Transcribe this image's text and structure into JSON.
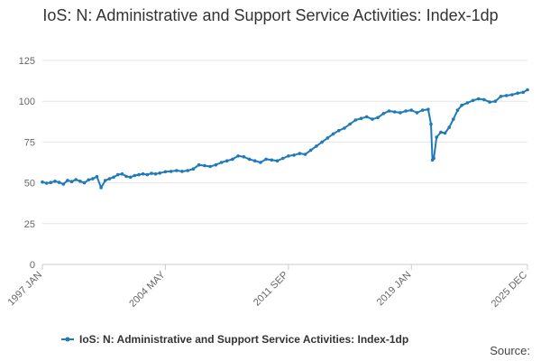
{
  "chart_data": {
    "type": "line",
    "title": "IoS: N: Administrative and Support Service Activities: Index-1dp",
    "xlabel": "",
    "ylabel": "",
    "ylim": [
      0,
      125
    ],
    "yticks": [
      0,
      25,
      50,
      75,
      100,
      125
    ],
    "xlim": [
      "1997-01",
      "2025-12"
    ],
    "xticks": [
      "1997 JAN",
      "2004 MAY",
      "2011 SEP",
      "2019 JAN",
      "2025 DEC"
    ],
    "grid": true,
    "legend": "bottom-center",
    "color": "#1f7ab8",
    "series": [
      {
        "name": "IoS: N: Administrative and Support Service Activities: Index-1dp",
        "points": [
          [
            "1997-01",
            50.5
          ],
          [
            "1997-04",
            49.8
          ],
          [
            "1997-07",
            50.2
          ],
          [
            "1997-10",
            51.0
          ],
          [
            "1998-01",
            50.3
          ],
          [
            "1998-04",
            49.2
          ],
          [
            "1998-07",
            51.5
          ],
          [
            "1998-10",
            50.8
          ],
          [
            "1999-01",
            52.0
          ],
          [
            "1999-04",
            51.0
          ],
          [
            "1999-07",
            50.0
          ],
          [
            "1999-10",
            51.8
          ],
          [
            "2000-01",
            52.5
          ],
          [
            "2000-04",
            53.8
          ],
          [
            "2000-07",
            47.0
          ],
          [
            "2000-10",
            51.5
          ],
          [
            "2001-01",
            52.5
          ],
          [
            "2001-04",
            53.5
          ],
          [
            "2001-07",
            55.0
          ],
          [
            "2001-10",
            55.5
          ],
          [
            "2002-01",
            54.0
          ],
          [
            "2002-04",
            53.5
          ],
          [
            "2002-07",
            54.5
          ],
          [
            "2002-10",
            55.0
          ],
          [
            "2003-01",
            55.5
          ],
          [
            "2003-04",
            55.0
          ],
          [
            "2003-07",
            55.8
          ],
          [
            "2003-10",
            55.5
          ],
          [
            "2004-01",
            56.0
          ],
          [
            "2004-05",
            56.8
          ],
          [
            "2004-09",
            57.0
          ],
          [
            "2005-01",
            57.5
          ],
          [
            "2005-05",
            57.0
          ],
          [
            "2005-09",
            57.5
          ],
          [
            "2006-01",
            58.5
          ],
          [
            "2006-05",
            61.0
          ],
          [
            "2006-09",
            60.5
          ],
          [
            "2007-01",
            60.0
          ],
          [
            "2007-05",
            61.0
          ],
          [
            "2007-09",
            62.5
          ],
          [
            "2008-01",
            63.5
          ],
          [
            "2008-05",
            64.5
          ],
          [
            "2008-09",
            66.5
          ],
          [
            "2009-01",
            66.0
          ],
          [
            "2009-05",
            64.5
          ],
          [
            "2009-09",
            63.5
          ],
          [
            "2010-01",
            62.5
          ],
          [
            "2010-05",
            64.5
          ],
          [
            "2010-09",
            64.0
          ],
          [
            "2011-01",
            63.5
          ],
          [
            "2011-05",
            65.0
          ],
          [
            "2011-09",
            66.5
          ],
          [
            "2012-01",
            67.0
          ],
          [
            "2012-05",
            68.0
          ],
          [
            "2012-09",
            67.5
          ],
          [
            "2013-01",
            70.0
          ],
          [
            "2013-05",
            72.5
          ],
          [
            "2013-09",
            75.0
          ],
          [
            "2014-01",
            77.5
          ],
          [
            "2014-05",
            80.0
          ],
          [
            "2014-09",
            82.0
          ],
          [
            "2015-01",
            83.5
          ],
          [
            "2015-05",
            86.0
          ],
          [
            "2015-09",
            88.5
          ],
          [
            "2016-01",
            89.5
          ],
          [
            "2016-05",
            90.5
          ],
          [
            "2016-09",
            89.0
          ],
          [
            "2017-01",
            90.0
          ],
          [
            "2017-05",
            92.5
          ],
          [
            "2017-09",
            94.0
          ],
          [
            "2018-01",
            93.5
          ],
          [
            "2018-05",
            93.0
          ],
          [
            "2018-09",
            94.0
          ],
          [
            "2019-01",
            94.5
          ],
          [
            "2019-05",
            93.0
          ],
          [
            "2019-09",
            94.5
          ],
          [
            "2020-01",
            95.0
          ],
          [
            "2020-03",
            86.0
          ],
          [
            "2020-04",
            64.0
          ],
          [
            "2020-05",
            65.0
          ],
          [
            "2020-07",
            78.0
          ],
          [
            "2020-10",
            81.0
          ],
          [
            "2021-01",
            80.5
          ],
          [
            "2021-04",
            84.0
          ],
          [
            "2021-07",
            89.0
          ],
          [
            "2021-10",
            94.5
          ],
          [
            "2022-01",
            97.5
          ],
          [
            "2022-05",
            99.0
          ],
          [
            "2022-09",
            100.5
          ],
          [
            "2023-01",
            101.5
          ],
          [
            "2023-05",
            101.0
          ],
          [
            "2023-09",
            99.5
          ],
          [
            "2024-01",
            100.0
          ],
          [
            "2024-05",
            103.0
          ],
          [
            "2024-09",
            103.5
          ],
          [
            "2025-01",
            104.0
          ],
          [
            "2025-05",
            105.0
          ],
          [
            "2025-09",
            105.5
          ],
          [
            "2025-12",
            107.0
          ]
        ]
      }
    ]
  },
  "footer": {
    "source_label": "Source:"
  }
}
